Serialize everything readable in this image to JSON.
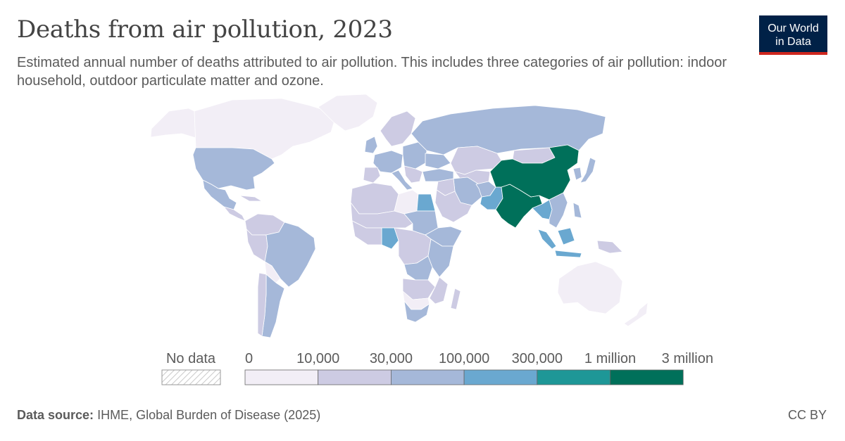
{
  "header": {
    "title": "Deaths from air pollution, 2023",
    "subtitle": "Estimated annual number of deaths attributed to air pollution. This includes three categories of air pollution: indoor household, outdoor particulate matter and ozone."
  },
  "logo": {
    "line1": "Our World",
    "line2": "in Data"
  },
  "legend": {
    "no_data_label": "No data",
    "bins": [
      {
        "from_label": "0",
        "color": "#f2eef6"
      },
      {
        "from_label": "10,000",
        "color": "#cdcbe3"
      },
      {
        "from_label": "30,000",
        "color": "#a5b8d9"
      },
      {
        "from_label": "100,000",
        "color": "#6aa8d0"
      },
      {
        "from_label": "300,000",
        "color": "#1e9797"
      },
      {
        "from_label": "1 million",
        "color": "#00705a"
      }
    ],
    "end_label": "3 million"
  },
  "colors": {
    "bin0": "#f2eef6",
    "bin1": "#cdcbe3",
    "bin2": "#a5b8d9",
    "bin3": "#6aa8d0",
    "bin4": "#1e9797",
    "bin5": "#00705a",
    "border": "#ffffff"
  },
  "footer": {
    "source_label": "Data source:",
    "source_text": "IHME, Global Burden of Disease (2025)",
    "license": "CC BY"
  }
}
